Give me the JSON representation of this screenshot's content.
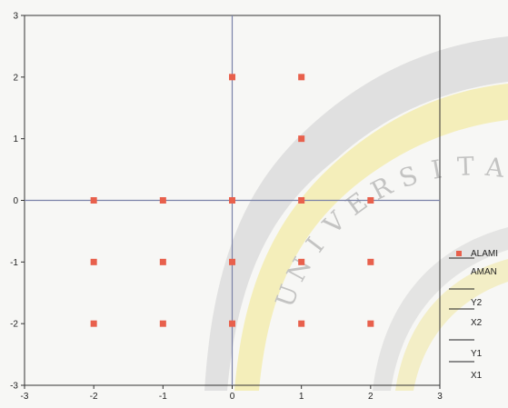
{
  "chart_data": {
    "type": "scatter",
    "title": "",
    "xlabel": "",
    "ylabel": "",
    "xlim": [
      -3,
      3
    ],
    "ylim": [
      -3,
      3
    ],
    "x_ticks": [
      "-3",
      "-2",
      "-1",
      "0",
      "1",
      "2",
      "3"
    ],
    "y_ticks": [
      "3",
      "2",
      "1",
      "0",
      "-1",
      "-2",
      "-3"
    ],
    "grid": false,
    "axes_lines": {
      "horizontal_at_y": 0,
      "vertical_at_x": 0,
      "color": "#7a82a8"
    },
    "series": [
      {
        "name": "ALAMI",
        "color": "#e8604c",
        "points": [
          {
            "x": 0,
            "y": 2
          },
          {
            "x": 1,
            "y": 2
          },
          {
            "x": 1,
            "y": 1
          },
          {
            "x": -2,
            "y": 0
          },
          {
            "x": -1,
            "y": 0
          },
          {
            "x": 0,
            "y": 0
          },
          {
            "x": 1,
            "y": 0
          },
          {
            "x": 2,
            "y": 0
          },
          {
            "x": -2,
            "y": -1
          },
          {
            "x": -1,
            "y": -1
          },
          {
            "x": 0,
            "y": -1
          },
          {
            "x": 1,
            "y": -1
          },
          {
            "x": 2,
            "y": -1
          },
          {
            "x": -2,
            "y": -2
          },
          {
            "x": -1,
            "y": -2
          },
          {
            "x": 0,
            "y": -2
          },
          {
            "x": 1,
            "y": -2
          },
          {
            "x": 2,
            "y": -2
          }
        ]
      }
    ],
    "legend": {
      "placement": "right",
      "entries": [
        {
          "label": "ALAMI",
          "marker": "square"
        },
        {
          "label": "AMAN",
          "marker": "line"
        },
        {
          "label": "Y2",
          "marker": "line"
        },
        {
          "label": "X2",
          "marker": "line"
        },
        {
          "label": "Y1",
          "marker": "line"
        },
        {
          "label": "X1",
          "marker": "line"
        }
      ]
    },
    "watermark_text": "UNIVERSITAS"
  }
}
